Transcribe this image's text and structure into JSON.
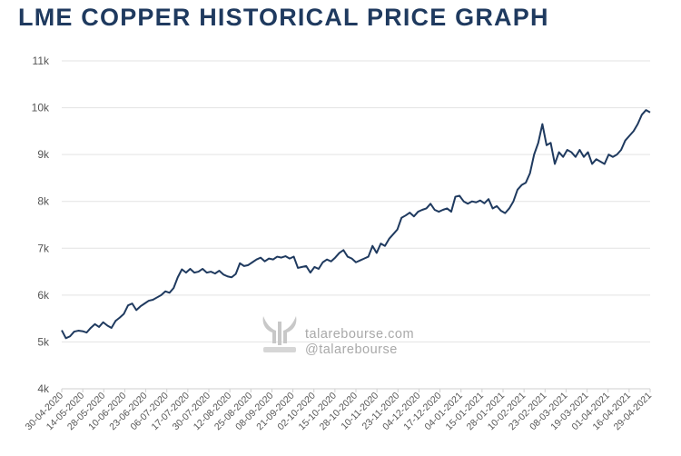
{
  "chart_data": {
    "type": "line",
    "title": "LME COPPER HISTORICAL PRICE GRAPH",
    "xlabel": "",
    "ylabel": "",
    "ylim": [
      4000,
      11000
    ],
    "yticks": [
      4000,
      5000,
      6000,
      7000,
      8000,
      9000,
      10000,
      11000
    ],
    "ytick_labels": [
      "4k",
      "5k",
      "6k",
      "7k",
      "8k",
      "9k",
      "10k",
      "11k"
    ],
    "xtick_labels": [
      "30-04-2020",
      "14-05-2020",
      "28-05-2020",
      "10-06-2020",
      "23-06-2020",
      "06-07-2020",
      "17-07-2020",
      "30-07-2020",
      "12-08-2020",
      "25-08-2020",
      "08-09-2020",
      "21-09-2020",
      "02-10-2020",
      "15-10-2020",
      "28-10-2020",
      "10-11-2020",
      "23-11-2020",
      "04-12-2020",
      "17-12-2020",
      "04-01-2021",
      "15-01-2021",
      "28-01-2021",
      "10-02-2021",
      "23-02-2021",
      "08-03-2021",
      "19-03-2021",
      "01-04-2021",
      "16-04-2021",
      "29-04-2021"
    ],
    "grid": true,
    "series": [
      {
        "name": "LME Copper",
        "color": "#1f3a5f",
        "values": [
          5250,
          5080,
          5120,
          5220,
          5240,
          5230,
          5200,
          5300,
          5380,
          5320,
          5420,
          5350,
          5300,
          5450,
          5520,
          5600,
          5780,
          5820,
          5680,
          5760,
          5820,
          5880,
          5900,
          5950,
          6000,
          6080,
          6050,
          6150,
          6380,
          6550,
          6480,
          6560,
          6480,
          6500,
          6560,
          6480,
          6500,
          6460,
          6520,
          6440,
          6400,
          6380,
          6450,
          6680,
          6620,
          6640,
          6700,
          6760,
          6800,
          6720,
          6780,
          6760,
          6820,
          6800,
          6830,
          6780,
          6820,
          6580,
          6600,
          6620,
          6480,
          6600,
          6560,
          6700,
          6760,
          6720,
          6800,
          6900,
          6960,
          6820,
          6780,
          6700,
          6740,
          6780,
          6820,
          7050,
          6900,
          7100,
          7050,
          7200,
          7300,
          7400,
          7650,
          7700,
          7760,
          7680,
          7780,
          7820,
          7850,
          7950,
          7820,
          7780,
          7820,
          7850,
          7780,
          8100,
          8120,
          8000,
          7950,
          8000,
          7980,
          8020,
          7960,
          8050,
          7850,
          7900,
          7800,
          7750,
          7850,
          8000,
          8250,
          8350,
          8400,
          8600,
          9000,
          9250,
          9650,
          9200,
          9250,
          8800,
          9050,
          8950,
          9100,
          9050,
          8950,
          9100,
          8950,
          9050,
          8800,
          8900,
          8850,
          8800,
          9000,
          8950,
          9000,
          9100,
          9300,
          9400,
          9500,
          9650,
          9850,
          9950,
          9900
        ]
      }
    ]
  },
  "watermark": {
    "site": "talarebourse.com",
    "handle": "@talarebourse"
  }
}
